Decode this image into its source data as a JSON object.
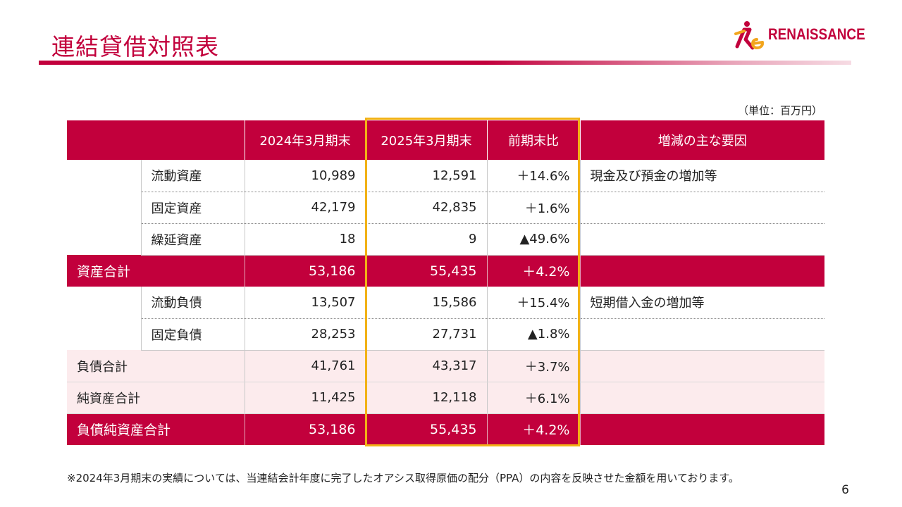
{
  "title": "連結貸借対照表",
  "logo": {
    "text": "RENAISSANCE",
    "mark": "Re"
  },
  "unit": "（単位：百万円）",
  "table": {
    "headers": [
      "",
      "2024年3月期末",
      "2025年3月期末",
      "前期末比",
      "増減の主な要因"
    ],
    "rows": [
      {
        "type": "sub",
        "label": "流動資産",
        "v2024": "10,989",
        "v2025": "12,591",
        "change": "＋14.6%",
        "factor": "現金及び預金の増加等"
      },
      {
        "type": "sub",
        "label": "固定資産",
        "v2024": "42,179",
        "v2025": "42,835",
        "change": "＋1.6%",
        "factor": ""
      },
      {
        "type": "sub",
        "label": "繰延資産",
        "v2024": "18",
        "v2025": "9",
        "change": "▲49.6%",
        "factor": ""
      },
      {
        "type": "total",
        "label": "資産合計",
        "v2024": "53,186",
        "v2025": "55,435",
        "change": "＋4.2%",
        "factor": ""
      },
      {
        "type": "sub",
        "label": "流動負債",
        "v2024": "13,507",
        "v2025": "15,586",
        "change": "＋15.4%",
        "factor": "短期借入金の増加等"
      },
      {
        "type": "sub",
        "label": "固定負債",
        "v2024": "28,253",
        "v2025": "27,731",
        "change": "▲1.8%",
        "factor": ""
      },
      {
        "type": "light",
        "label": "負債合計",
        "v2024": "41,761",
        "v2025": "43,317",
        "change": "＋3.7%",
        "factor": ""
      },
      {
        "type": "light",
        "label": "純資産合計",
        "v2024": "11,425",
        "v2025": "12,118",
        "change": "＋6.1%",
        "factor": ""
      },
      {
        "type": "total",
        "label": "負債純資産合計",
        "v2024": "53,186",
        "v2025": "55,435",
        "change": "＋4.2%",
        "factor": ""
      }
    ]
  },
  "colors": {
    "accent": "#c2003c",
    "highlight": "#f2b216",
    "light_row": "#fcebed"
  },
  "footnote": "※2024年3月期末の実績については、当連結会計年度に完了したオアシス取得原価の配分（PPA）の内容を反映させた金額を用いております。",
  "page_number": "6"
}
